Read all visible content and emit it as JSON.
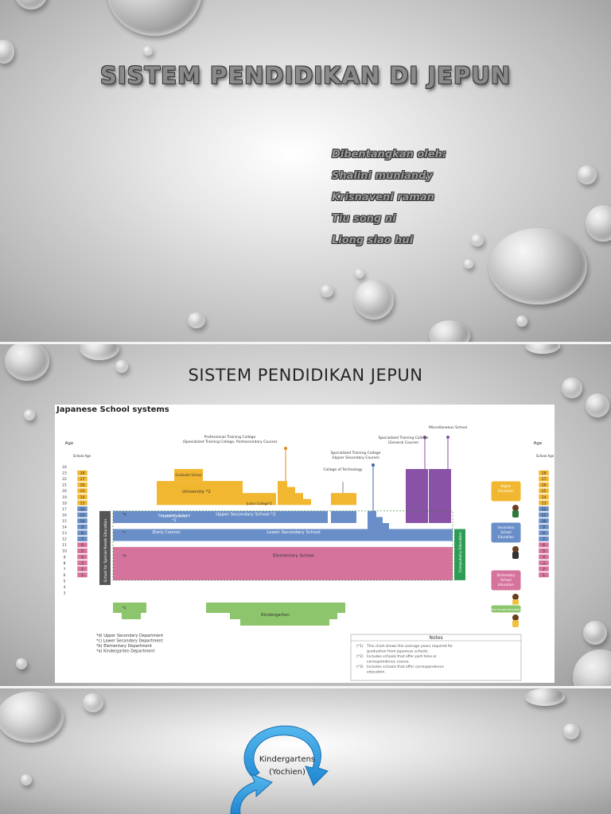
{
  "slide1": {
    "title": "SISTEM PENDIDIKAN DI JEPUN",
    "presenters_heading": "Dibentangkan oleh:",
    "presenters": [
      "Shalini muniandy",
      "Krisnaveni raman",
      "Tiu song ni",
      "Liong siao hui"
    ]
  },
  "slide2": {
    "title": "SISTEM PENDIDIKAN JEPUN",
    "diagram": {
      "title": "Japanese School systems",
      "age_heading": "Age",
      "school_age_heading": "School Age",
      "ages": [
        "24",
        "23",
        "22",
        "21",
        "20",
        "19",
        "18",
        "17",
        "16",
        "15",
        "14",
        "13",
        "12",
        "11",
        "10",
        "9",
        "8",
        "7",
        "6",
        "5",
        "4",
        "3"
      ],
      "school_years": [
        "18",
        "17",
        "16",
        "15",
        "14",
        "13",
        "12",
        "11",
        "10",
        "9",
        "8",
        "7",
        "6",
        "5",
        "4",
        "3",
        "2",
        "1"
      ],
      "labels": {
        "professional_college": "Professional Training College",
        "professional_college_sub": "(Specialized Training College, Postsecondary Course)",
        "graduate_school": "Graduate School",
        "university": "University *2",
        "junior_college": "Junior College*2",
        "college_technology": "College of Technology",
        "spec_upper": "Specialized Training College",
        "spec_upper_sub": "(Upper Secondary Course)",
        "spec_general": "Specialized Training College",
        "spec_general_sub": "(General Course)",
        "misc_school": "Miscellaneous School",
        "secondary_later": "Secondary School",
        "secondary_later_sub": "(Later Course)",
        "secondary_later_note": "*2",
        "upper_secondary": "Upper Secondary School *2",
        "early_course": "(Early Course)",
        "lower_secondary": "Lower Secondary School",
        "elementary": "Elementary School",
        "kindergarten": "Kindergarten",
        "special_needs": "School for Special Needs Education",
        "compulsory": "Compulsory Education",
        "mark_d": "*d",
        "mark_c": "*c",
        "mark_b": "*b",
        "mark_a": "*a"
      },
      "legend": [
        "*d) Upper Secondary Department",
        "*c) Lower Secondary Department",
        "*b) Elementary Department",
        "*a) Kindergarten Department"
      ],
      "side_labels": [
        "Higher Education",
        "Secondary School Education",
        "Elementary School Education",
        "Pre-School Education"
      ],
      "notes_title": "Notes",
      "notes": [
        {
          "mark": "(*1)",
          "text": "This chart shows the average years required for"
        },
        {
          "mark": "",
          "text": "graduation from Japanese schools."
        },
        {
          "mark": "(*2)",
          "text": "Includes schools that offer part-time or"
        },
        {
          "mark": "",
          "text": "correspondence course."
        },
        {
          "mark": "(*3)",
          "text": "Includes schools that offer correspondence"
        },
        {
          "mark": "",
          "text": "education."
        }
      ],
      "colors": {
        "higher": "#f2b731",
        "secondary": "#6a8fc8",
        "elementary": "#d6739c",
        "kindergarten": "#8cc56b",
        "misc": "#8a52a6",
        "special": "#555555",
        "compulsory": "#2e9c55"
      }
    }
  },
  "slide3": {
    "item": "Kindergartens",
    "item_sub": "(Yochien)"
  }
}
